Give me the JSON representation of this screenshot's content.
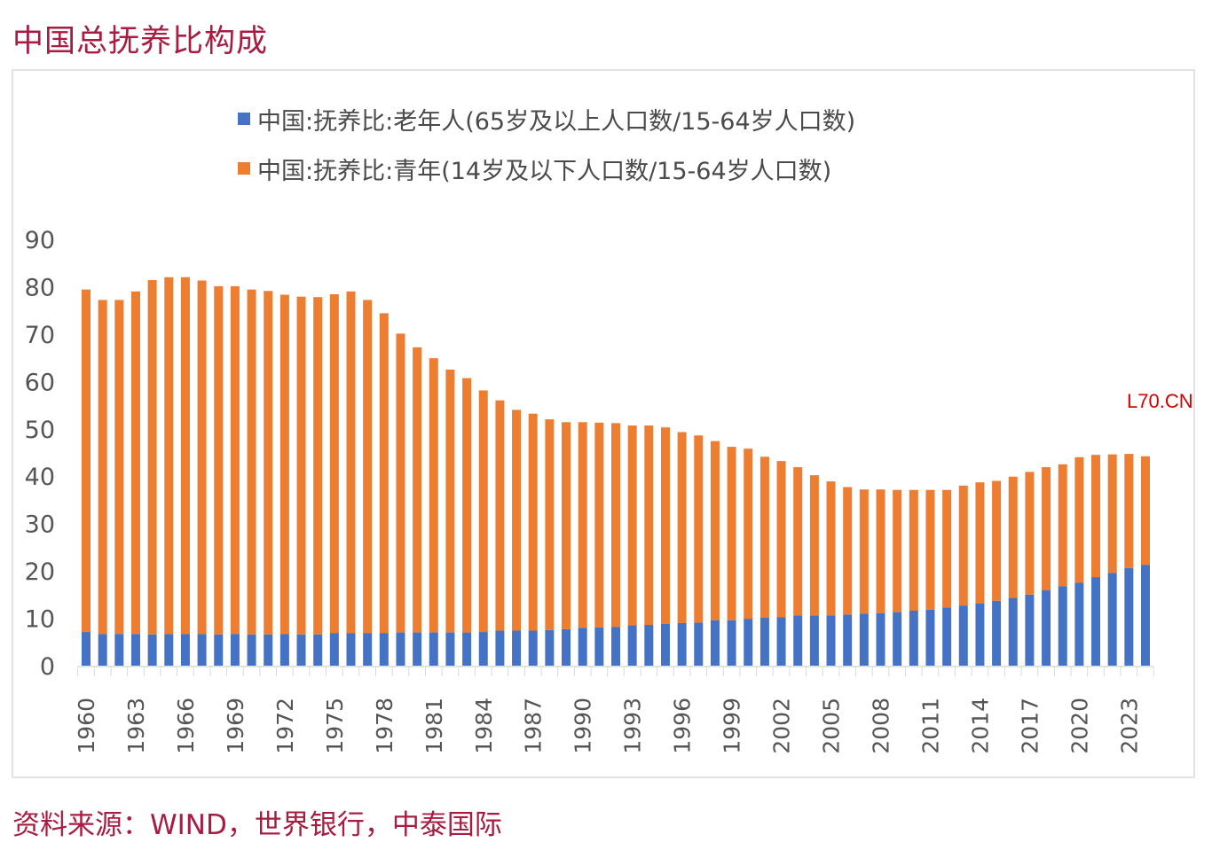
{
  "page": {
    "title": "中国总抚养比构成",
    "source": "资料来源：WIND，世界银行，中泰国际",
    "watermark": "L70.CN"
  },
  "chart_data": {
    "type": "bar",
    "stacked": true,
    "title": "中国总抚养比构成",
    "xlabel": "",
    "ylabel": "",
    "ylim": [
      0,
      90
    ],
    "yticks": [
      0,
      10,
      20,
      30,
      40,
      50,
      60,
      70,
      80,
      90
    ],
    "grid": false,
    "legend_position": "top",
    "x": [
      1960,
      1961,
      1962,
      1963,
      1964,
      1965,
      1966,
      1967,
      1968,
      1969,
      1970,
      1971,
      1972,
      1973,
      1974,
      1975,
      1976,
      1977,
      1978,
      1979,
      1980,
      1981,
      1982,
      1983,
      1984,
      1985,
      1986,
      1987,
      1988,
      1989,
      1990,
      1991,
      1992,
      1993,
      1994,
      1995,
      1996,
      1997,
      1998,
      1999,
      2000,
      2001,
      2002,
      2003,
      2004,
      2005,
      2006,
      2007,
      2008,
      2009,
      2010,
      2011,
      2012,
      2013,
      2014,
      2015,
      2016,
      2017,
      2018,
      2019,
      2020,
      2021,
      2022,
      2023,
      2024
    ],
    "xtick_labels": [
      "1960",
      "1963",
      "1966",
      "1969",
      "1972",
      "1975",
      "1978",
      "1981",
      "1984",
      "1987",
      "1990",
      "1993",
      "1996",
      "1999",
      "2002",
      "2005",
      "2008",
      "2011",
      "2014",
      "2017",
      "2020",
      "2023"
    ],
    "series": [
      {
        "name": "中国:抚养比:老年人(65岁及以上人口数/15-64岁人口数)",
        "color": "#4472c4",
        "values": [
          7.1,
          6.7,
          6.7,
          6.7,
          6.6,
          6.7,
          6.7,
          6.7,
          6.6,
          6.7,
          6.6,
          6.6,
          6.7,
          6.6,
          6.6,
          6.9,
          6.9,
          6.9,
          6.9,
          7.0,
          7.0,
          7.0,
          7.0,
          7.0,
          7.1,
          7.4,
          7.4,
          7.4,
          7.5,
          7.7,
          8.0,
          8.1,
          8.2,
          8.5,
          8.6,
          8.8,
          9.0,
          9.1,
          9.6,
          9.6,
          9.9,
          10.1,
          10.2,
          10.6,
          10.6,
          10.6,
          10.8,
          11.0,
          11.1,
          11.3,
          11.6,
          11.8,
          12.3,
          12.7,
          13.1,
          13.7,
          14.3,
          15.0,
          15.9,
          16.8,
          17.5,
          18.7,
          19.6,
          20.6,
          21.3
        ]
      },
      {
        "name": "中国:抚养比:青年(14岁及以下人口数/15-64岁人口数)",
        "color": "#ed7d31",
        "values": [
          72.3,
          70.5,
          70.5,
          72.3,
          74.8,
          75.3,
          75.3,
          74.6,
          73.5,
          73.4,
          72.8,
          72.5,
          71.6,
          71.3,
          71.2,
          71.5,
          72.1,
          70.3,
          67.5,
          63.1,
          60.2,
          57.9,
          55.5,
          53.7,
          51.0,
          48.6,
          46.6,
          45.8,
          44.5,
          43.7,
          43.4,
          43.2,
          43.0,
          42.2,
          42.1,
          41.5,
          40.3,
          39.5,
          37.8,
          36.6,
          35.9,
          34.0,
          33.0,
          31.3,
          29.6,
          28.3,
          26.9,
          26.2,
          26.1,
          25.8,
          25.5,
          25.3,
          24.8,
          25.3,
          25.6,
          25.3,
          25.6,
          25.9,
          26.0,
          25.7,
          26.5,
          25.8,
          25.0,
          24.1,
          22.9
        ]
      }
    ]
  }
}
